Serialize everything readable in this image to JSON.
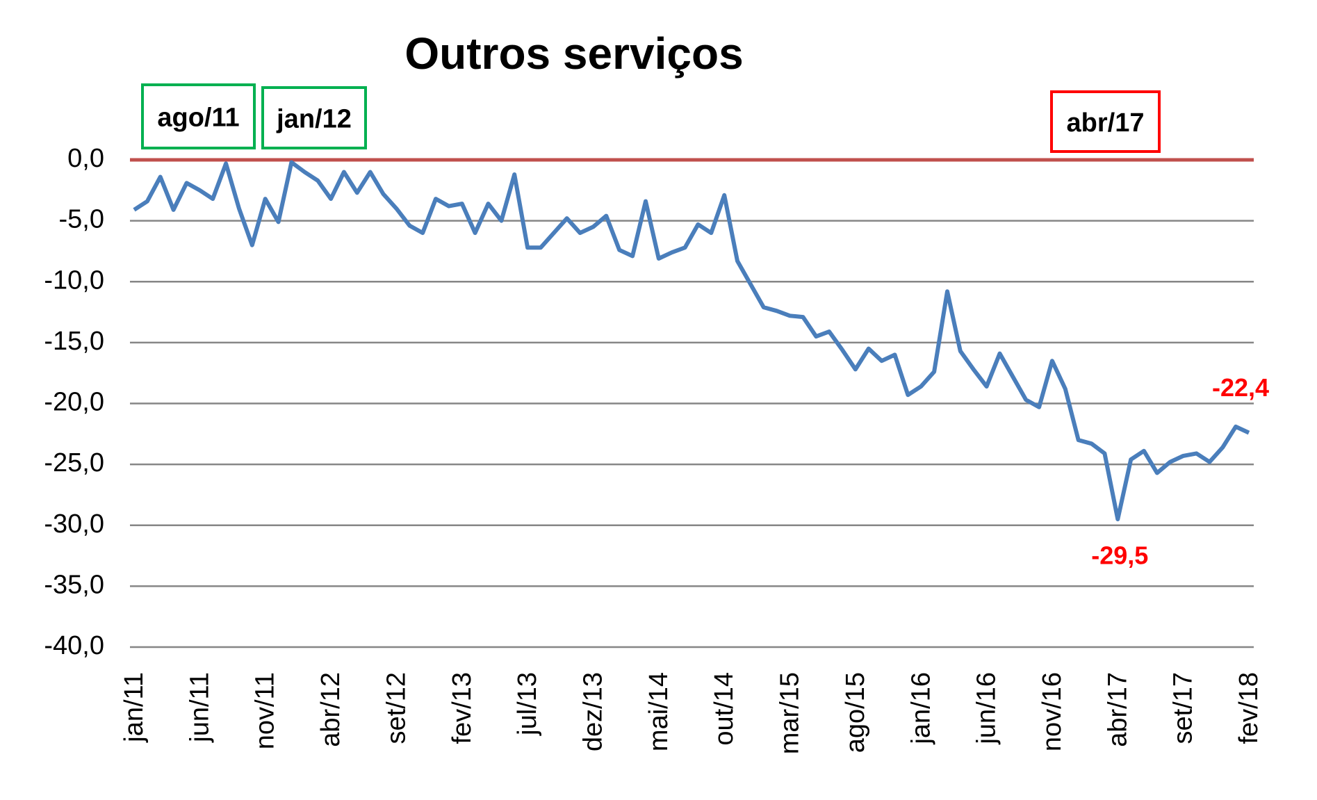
{
  "chart_data": {
    "type": "line",
    "title": "Outros serviços",
    "categories": [
      "jan/11",
      null,
      null,
      null,
      null,
      "jun/11",
      null,
      null,
      null,
      null,
      "nov/11",
      null,
      null,
      null,
      null,
      "abr/12",
      null,
      null,
      null,
      null,
      "set/12",
      null,
      null,
      null,
      null,
      "fev/13",
      null,
      null,
      null,
      null,
      "jul/13",
      null,
      null,
      null,
      null,
      "dez/13",
      null,
      null,
      null,
      null,
      "mai/14",
      null,
      null,
      null,
      null,
      "out/14",
      null,
      null,
      null,
      null,
      "mar/15",
      null,
      null,
      null,
      null,
      "ago/15",
      null,
      null,
      null,
      null,
      "jan/16",
      null,
      null,
      null,
      null,
      "jun/16",
      null,
      null,
      null,
      null,
      "nov/16",
      null,
      null,
      null,
      null,
      "abr/17",
      null,
      null,
      null,
      null,
      "set/17",
      null,
      null,
      null,
      null,
      "fev/18"
    ],
    "series": [
      {
        "name": "Outros serviços",
        "color": "#4a7ebb",
        "values": [
          -4.1,
          -3.4,
          -1.4,
          -4.1,
          -1.9,
          -2.5,
          -3.2,
          -0.3,
          -4.0,
          -7.0,
          -3.2,
          -5.1,
          -0.2,
          -1.0,
          -1.7,
          -3.2,
          -1.0,
          -2.7,
          -1.0,
          -2.8,
          -4.0,
          -5.4,
          -6.0,
          -3.2,
          -3.8,
          -3.6,
          -6.0,
          -3.6,
          -5.0,
          -1.2,
          -7.2,
          -7.2,
          -6.0,
          -4.8,
          -6.0,
          -5.5,
          -4.6,
          -7.4,
          -7.9,
          -3.4,
          -8.1,
          -7.6,
          -7.2,
          -5.3,
          -6.0,
          -2.9,
          -8.3,
          -10.2,
          -12.1,
          -12.4,
          -12.8,
          -12.9,
          -14.5,
          -14.1,
          -15.6,
          -17.2,
          -15.5,
          -16.5,
          -16.0,
          -19.3,
          -18.6,
          -17.4,
          -10.8,
          -15.7,
          -17.2,
          -18.6,
          -15.9,
          -17.8,
          -19.7,
          -20.3,
          -16.5,
          -18.8,
          -23.0,
          -23.3,
          -24.1,
          -29.5,
          -24.6,
          -23.9,
          -25.7,
          -24.8,
          -24.3,
          -24.1,
          -24.8,
          -23.6,
          -21.9,
          -22.4
        ],
        "value_labels": [
          null,
          null,
          null,
          null,
          null,
          null,
          null,
          null,
          null,
          null,
          null,
          null,
          null,
          null,
          null,
          null,
          null,
          null,
          null,
          null,
          null,
          null,
          null,
          null,
          null,
          null,
          null,
          null,
          null,
          null,
          null,
          null,
          null,
          null,
          null,
          null,
          null,
          null,
          null,
          null,
          null,
          null,
          null,
          null,
          null,
          null,
          null,
          null,
          null,
          null,
          null,
          null,
          null,
          null,
          null,
          null,
          null,
          null,
          null,
          null,
          null,
          null,
          null,
          null,
          null,
          null,
          null,
          null,
          null,
          null,
          null,
          null,
          null,
          null,
          null,
          "-29,5",
          null,
          null,
          null,
          null,
          null,
          null,
          null,
          null,
          null,
          "-22,4"
        ],
        "value_label_color": "#ff0000"
      }
    ],
    "ylim": [
      -40,
      0
    ],
    "yticks": [
      {
        "value": 0,
        "label": "0,0"
      },
      {
        "value": -5,
        "label": "-5,0"
      },
      {
        "value": -10,
        "label": "-10,0"
      },
      {
        "value": -15,
        "label": "-15,0"
      },
      {
        "value": -20,
        "label": "-20,0"
      },
      {
        "value": -25,
        "label": "-25,0"
      },
      {
        "value": -30,
        "label": "-30,0"
      },
      {
        "value": -35,
        "label": "-35,0"
      },
      {
        "value": -40,
        "label": "-40,0"
      }
    ],
    "grid": true,
    "reference_line": {
      "value": 0,
      "color": "#c0504d"
    },
    "highlights": [
      {
        "label": "ago/11",
        "color": "#00b050"
      },
      {
        "label": "jan/12",
        "color": "#00b050"
      },
      {
        "label": "abr/17",
        "color": "#ff0000"
      }
    ]
  }
}
